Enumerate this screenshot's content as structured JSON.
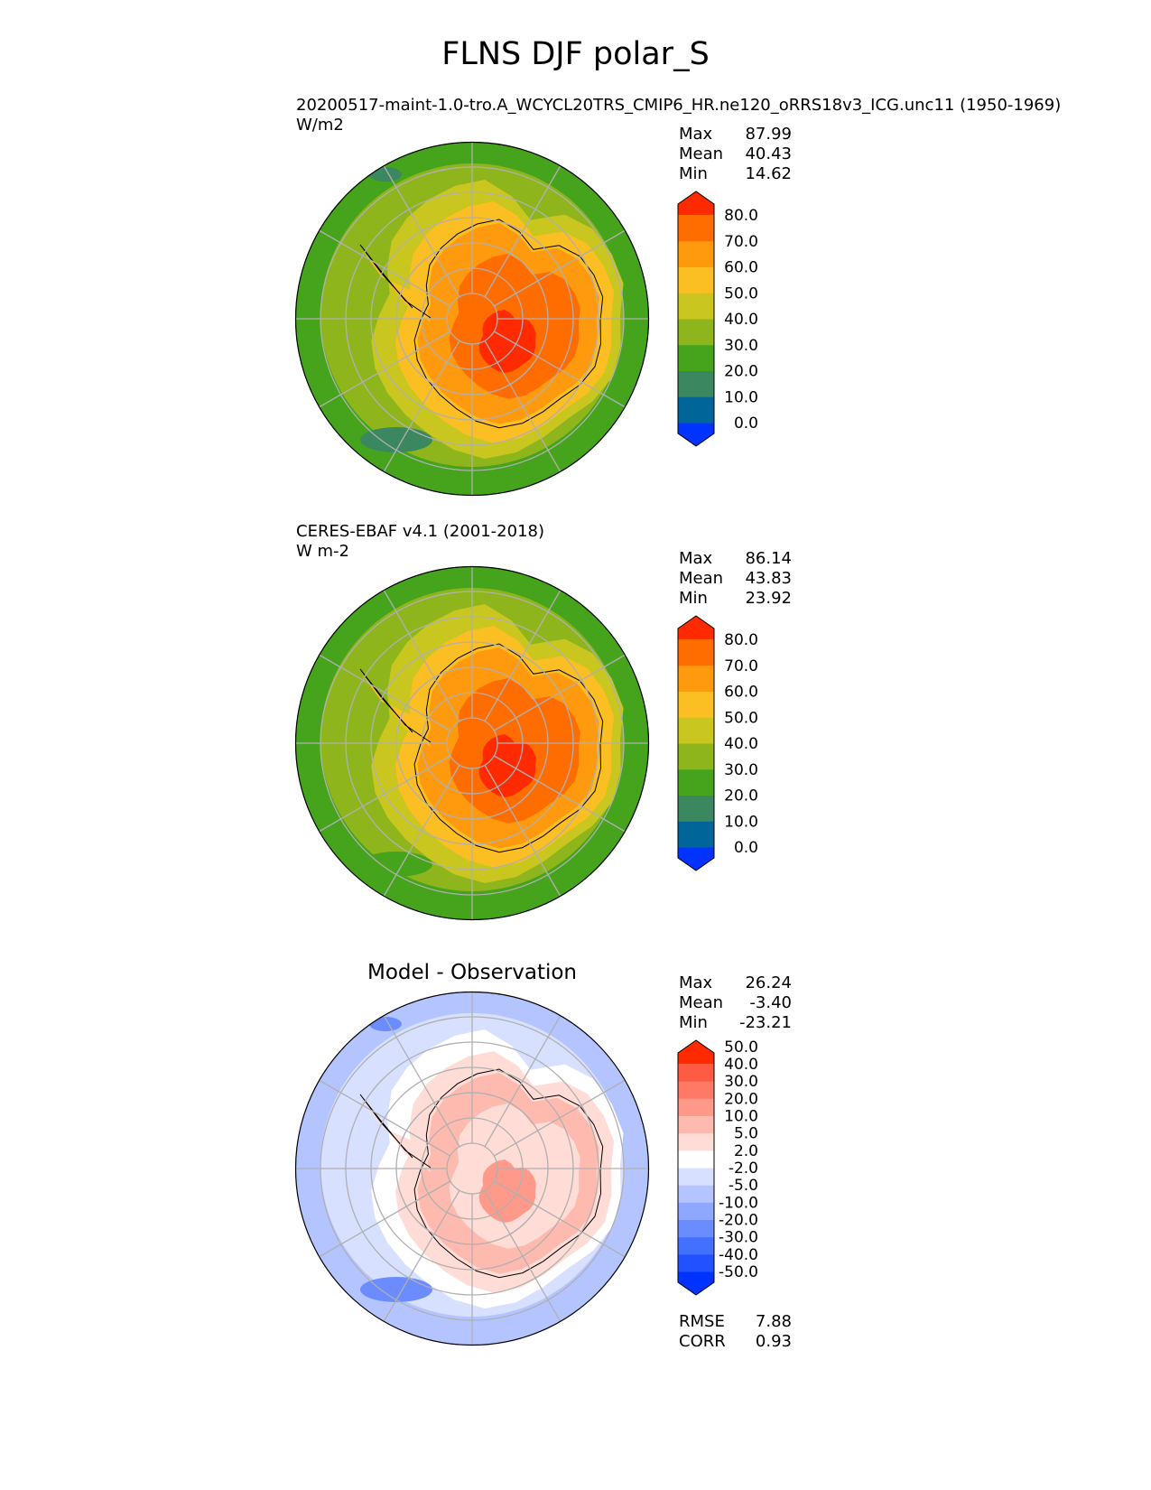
{
  "title": "FLNS DJF polar_S",
  "panels": [
    {
      "id": "model",
      "heading": "20200517-maint-1.0-tro.A_WCYCL20TRS_CMIP6_HR.ne120_oRRS18v3_ICG.unc11 (1950-1969)",
      "units": "W/m2",
      "stats": [
        {
          "label": "Max",
          "value": "87.99"
        },
        {
          "label": "Mean",
          "value": "40.43"
        },
        {
          "label": "Min",
          "value": "14.62"
        }
      ],
      "colorbar": {
        "colors": [
          "#0033ff",
          "#006699",
          "#3a8760",
          "#46a31c",
          "#8fb51d",
          "#c9c71f",
          "#fbbf23",
          "#ff9a0e",
          "#ff6c00",
          "#ff2a00"
        ],
        "tick_labels": [
          "0.0",
          "10.0",
          "20.0",
          "30.0",
          "40.0",
          "50.0",
          "60.0",
          "70.0",
          "80.0"
        ]
      },
      "map_colors": {
        "ocean_outer": "#46a31c",
        "ocean_mid": "#8fb51d",
        "coast": "#c9c71f",
        "ice_edge": "#fbbf23",
        "ice_mid": "#ff9a0e",
        "ice_core": "#ff6c00",
        "ice_max": "#ff2a00",
        "patch": "#3a8760"
      }
    },
    {
      "id": "obs",
      "heading": "CERES-EBAF v4.1 (2001-2018)",
      "units": "W m-2",
      "stats": [
        {
          "label": "Max",
          "value": "86.14"
        },
        {
          "label": "Mean",
          "value": "43.83"
        },
        {
          "label": "Min",
          "value": "23.92"
        }
      ],
      "colorbar": {
        "colors": [
          "#0033ff",
          "#006699",
          "#3a8760",
          "#46a31c",
          "#8fb51d",
          "#c9c71f",
          "#fbbf23",
          "#ff9a0e",
          "#ff6c00",
          "#ff2a00"
        ],
        "tick_labels": [
          "0.0",
          "10.0",
          "20.0",
          "30.0",
          "40.0",
          "50.0",
          "60.0",
          "70.0",
          "80.0"
        ]
      },
      "map_colors": {
        "ocean_outer": "#46a31c",
        "ocean_mid": "#8fb51d",
        "coast": "#c9c71f",
        "ice_edge": "#fbbf23",
        "ice_mid": "#ff9a0e",
        "ice_core": "#ff6c00",
        "ice_max": "#ff2a00",
        "patch": "#46a31c"
      }
    },
    {
      "id": "diff",
      "heading": "Model - Observation",
      "stats": [
        {
          "label": "Max",
          "value": "26.24"
        },
        {
          "label": "Mean",
          "value": "-3.40"
        },
        {
          "label": "Min",
          "value": "-23.21"
        }
      ],
      "colorbar": {
        "colors": [
          "#0033ff",
          "#2251ff",
          "#4470ff",
          "#6a8cff",
          "#8ea7ff",
          "#b4c4ff",
          "#d8e0ff",
          "#ffffff",
          "#ffdcd6",
          "#ffbab0",
          "#ff998a",
          "#ff7a66",
          "#ff5a42",
          "#ff2a00"
        ],
        "tick_labels": [
          "-50.0",
          "-40.0",
          "-30.0",
          "-20.0",
          "-10.0",
          "-5.0",
          "-2.0",
          "2.0",
          "5.0",
          "10.0",
          "20.0",
          "30.0",
          "40.0",
          "50.0"
        ]
      },
      "map_colors": {
        "ocean_outer": "#b4c4ff",
        "ocean_mid": "#d8e0ff",
        "coast": "#ffffff",
        "ice_edge": "#ffdcd6",
        "ice_mid": "#ffbab0",
        "ice_core": "#ffdcd6",
        "ice_max": "#ff998a",
        "patch": "#6a8cff"
      },
      "footer": [
        {
          "label": "RMSE",
          "value": "7.88"
        },
        {
          "label": "CORR",
          "value": "0.93"
        }
      ]
    }
  ]
}
